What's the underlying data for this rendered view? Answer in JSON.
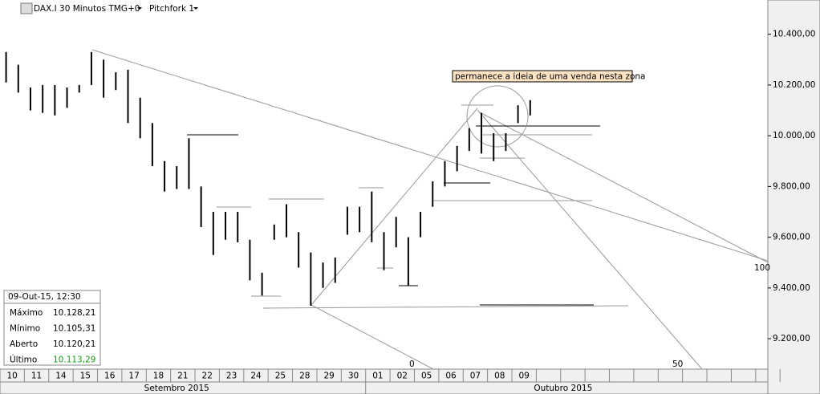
{
  "header": {
    "symbol": "DAX.I 30 Minutos TMG+0",
    "study": "Pitchfork 1"
  },
  "chart_data": {
    "type": "ohlc",
    "annotation": "permanece a ideia de uma venda nesta zona",
    "pitchfork_labels": [
      "0",
      "50",
      "100"
    ],
    "categories": [
      "10",
      "11",
      "14",
      "15",
      "16",
      "17",
      "18",
      "21",
      "22",
      "23",
      "24",
      "25",
      "28",
      "29",
      "30",
      "01",
      "02",
      "05",
      "06",
      "07",
      "08",
      "09"
    ],
    "months": [
      "Setembro 2015",
      "Outubro 2015"
    ],
    "x": [
      0.25,
      0.75,
      1.25,
      1.75,
      2.25,
      2.75,
      3.25,
      3.75,
      4.25,
      4.75,
      5.25,
      5.75,
      6.25,
      6.75,
      7.25,
      7.75,
      8.25,
      8.75,
      9.25,
      9.75,
      10.25,
      10.75,
      11.25,
      11.75,
      12.25,
      12.75,
      13.25,
      13.75,
      14.25,
      14.75,
      15.25,
      15.75,
      16.25,
      16.75,
      17.25,
      17.75,
      18.25,
      18.75,
      19.25,
      19.75,
      20.25,
      20.75,
      21.25,
      21.75
    ],
    "high": [
      10330,
      10280,
      10190,
      10200,
      10200,
      10190,
      10200,
      10330,
      10300,
      10250,
      10260,
      10150,
      10050,
      9900,
      9880,
      9990,
      9800,
      9700,
      9700,
      9700,
      9590,
      9460,
      9650,
      9730,
      9620,
      9540,
      9500,
      9520,
      9720,
      9720,
      9780,
      9620,
      9680,
      9600,
      9700,
      9820,
      9900,
      9960,
      10030,
      10090,
      10010,
      10010,
      10120,
      10140
    ],
    "low": [
      10210,
      10170,
      10100,
      10090,
      10080,
      10110,
      10170,
      10200,
      10150,
      10180,
      10050,
      9990,
      9880,
      9780,
      9790,
      9790,
      9640,
      9530,
      9590,
      9580,
      9430,
      9370,
      9590,
      9600,
      9480,
      9330,
      9400,
      9420,
      9610,
      9620,
      9580,
      9470,
      9560,
      9410,
      9600,
      9720,
      9800,
      9860,
      9940,
      9930,
      9900,
      9940,
      10050,
      10080
    ],
    "xlim": [
      0,
      31.5
    ],
    "ylim": [
      9080,
      10535
    ],
    "yticks": [
      {
        "value": 9200,
        "label": "9.200,00"
      },
      {
        "value": 9400,
        "label": "9.400,00"
      },
      {
        "value": 9600,
        "label": "9.600,00"
      },
      {
        "value": 9800,
        "label": "9.800,00"
      },
      {
        "value": 10000,
        "label": "10.000,00"
      },
      {
        "value": 10200,
        "label": "10.200,00"
      },
      {
        "value": 10400,
        "label": "10.400,00"
      }
    ],
    "color": "#000000"
  },
  "info_panel": {
    "datetime": "09-Out-15, 12:30",
    "rows": [
      {
        "label": "Máximo",
        "value": "10.128,21"
      },
      {
        "label": "Mínimo",
        "value": "10.105,31"
      },
      {
        "label": "Aberto",
        "value": "10.120,21"
      },
      {
        "label": "Último",
        "value": "10.113,29"
      }
    ]
  }
}
